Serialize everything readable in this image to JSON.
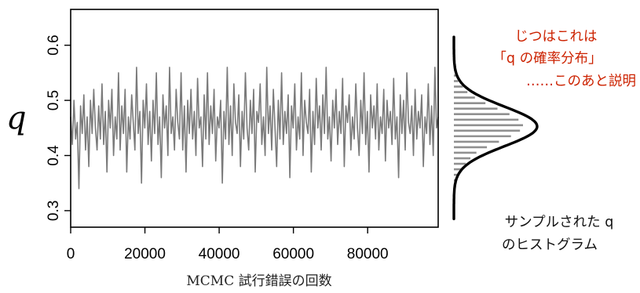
{
  "colors": {
    "trace": "#7a7a7a",
    "hist": "#909090",
    "density": "#000000",
    "note": "#cc2200"
  },
  "chart_data": [
    {
      "type": "line",
      "title": "",
      "ylabel": "q",
      "xlabel": "MCMC 試行錯誤の回数",
      "xlim": [
        0,
        99000
      ],
      "ylim": [
        0.27,
        0.665
      ],
      "x_ticks": [
        "0",
        "20000",
        "40000",
        "60000",
        "80000"
      ],
      "x_tick_values": [
        0,
        20000,
        40000,
        60000,
        80000
      ],
      "y_ticks": [
        "0.3",
        "0.4",
        "0.5",
        "0.6"
      ],
      "y_tick_values": [
        0.3,
        0.4,
        0.5,
        0.6
      ],
      "grid": false,
      "series": [
        {
          "values": [
            0.47,
            0.42,
            0.5,
            0.43,
            0.46,
            0.34,
            0.49,
            0.44,
            0.51,
            0.41,
            0.47,
            0.38,
            0.5,
            0.44,
            0.52,
            0.45,
            0.41,
            0.49,
            0.43,
            0.53,
            0.42,
            0.48,
            0.37,
            0.5,
            0.45,
            0.52,
            0.4,
            0.47,
            0.43,
            0.55,
            0.41,
            0.49,
            0.44,
            0.52,
            0.37,
            0.47,
            0.43,
            0.51,
            0.46,
            0.41,
            0.56,
            0.44,
            0.48,
            0.35,
            0.5,
            0.45,
            0.53,
            0.42,
            0.48,
            0.39,
            0.5,
            0.44,
            0.55,
            0.42,
            0.47,
            0.36,
            0.51,
            0.45,
            0.49,
            0.4,
            0.56,
            0.44,
            0.47,
            0.41,
            0.52,
            0.46,
            0.43,
            0.55,
            0.41,
            0.49,
            0.37,
            0.5,
            0.44,
            0.52,
            0.43,
            0.48,
            0.4,
            0.54,
            0.45,
            0.47,
            0.38,
            0.51,
            0.43,
            0.55,
            0.42,
            0.49,
            0.44,
            0.52,
            0.39,
            0.47,
            0.45,
            0.5,
            0.35,
            0.48,
            0.43,
            0.56,
            0.42,
            0.49,
            0.4,
            0.53,
            0.46,
            0.44,
            0.51,
            0.38,
            0.48,
            0.43,
            0.55,
            0.45,
            0.41,
            0.5,
            0.44,
            0.52,
            0.37,
            0.48,
            0.46,
            0.53,
            0.42,
            0.47,
            0.4,
            0.56,
            0.44,
            0.49,
            0.41,
            0.52,
            0.45,
            0.38,
            0.5,
            0.43,
            0.55,
            0.42,
            0.48,
            0.44,
            0.51,
            0.36,
            0.49,
            0.45,
            0.53,
            0.41,
            0.47,
            0.43,
            0.55,
            0.4,
            0.5,
            0.46,
            0.44,
            0.52,
            0.37,
            0.48,
            0.42,
            0.54,
            0.45,
            0.49,
            0.41,
            0.51,
            0.44,
            0.56,
            0.43,
            0.47,
            0.39,
            0.5,
            0.45,
            0.52,
            0.42,
            0.48,
            0.44,
            0.54,
            0.38,
            0.49,
            0.46,
            0.51,
            0.41,
            0.47,
            0.43,
            0.53,
            0.45,
            0.4,
            0.5,
            0.44,
            0.55,
            0.42,
            0.48,
            0.37,
            0.51,
            0.45,
            0.49,
            0.43,
            0.53,
            0.41,
            0.47,
            0.44,
            0.52,
            0.39,
            0.5,
            0.45,
            0.48,
            0.42,
            0.54,
            0.43,
            0.47,
            0.36,
            0.51,
            0.44,
            0.5,
            0.41,
            0.55,
            0.46,
            0.44,
            0.49,
            0.4,
            0.52,
            0.43,
            0.48,
            0.45,
            0.51,
            0.38,
            0.47,
            0.44,
            0.53,
            0.42,
            0.49,
            0.4,
            0.56,
            0.45,
            0.47
          ]
        }
      ]
    },
    {
      "type": "bar",
      "orientation": "horizontal",
      "bin_centers": [
        0.345,
        0.355,
        0.365,
        0.375,
        0.385,
        0.395,
        0.405,
        0.415,
        0.425,
        0.435,
        0.445,
        0.455,
        0.465,
        0.475,
        0.485,
        0.495,
        0.505,
        0.515,
        0.525,
        0.535,
        0.545,
        0.555
      ],
      "values": [
        1,
        2,
        3,
        5,
        8,
        11,
        15,
        22,
        30,
        38,
        44,
        46,
        43,
        37,
        29,
        21,
        14,
        9,
        6,
        3,
        2,
        1
      ],
      "density_curve": true
    }
  ],
  "annotations": {
    "note": [
      "じつはこれは",
      "「q の確率分布」",
      "……このあと説明"
    ],
    "caption": [
      "サンプルされた q",
      "のヒストグラム"
    ]
  }
}
